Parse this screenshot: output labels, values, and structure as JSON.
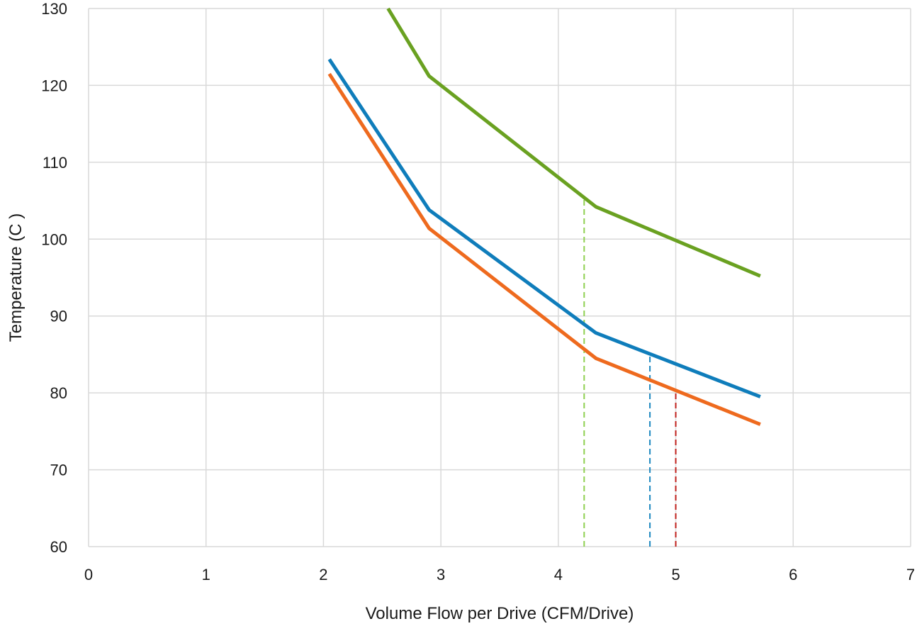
{
  "chart_data": {
    "type": "line",
    "xlabel": "Volume Flow per Drive (CFM/Drive)",
    "ylabel": "Temperature (C )",
    "xlim": [
      0,
      7
    ],
    "ylim": [
      60,
      130
    ],
    "x_ticks": [
      "0",
      "1",
      "2",
      "3",
      "4",
      "5",
      "6",
      "7"
    ],
    "y_ticks": [
      "60",
      "70",
      "80",
      "90",
      "100",
      "110",
      "120",
      "130"
    ],
    "grid": true,
    "legend": "none",
    "series": [
      {
        "color": "#6aa121",
        "x": [
          2.55,
          2.9,
          4.32,
          5.72
        ],
        "y": [
          130,
          121.2,
          104.2,
          95.2
        ]
      },
      {
        "color": "#0f7dbb",
        "x": [
          2.05,
          2.9,
          4.32,
          5.72
        ],
        "y": [
          123.4,
          103.8,
          87.8,
          79.5
        ]
      },
      {
        "color": "#ee6a1e",
        "x": [
          2.05,
          2.9,
          4.32,
          5.72
        ],
        "y": [
          121.5,
          101.4,
          84.5,
          75.9
        ]
      }
    ],
    "reference_lines": [
      {
        "color": "#8ed04f",
        "x": 4.22,
        "y": 105.2
      },
      {
        "color": "#1b87c0",
        "x": 4.78,
        "y": 85.2
      },
      {
        "color": "#c0201c",
        "x": 5.0,
        "y": 80.4
      }
    ]
  }
}
